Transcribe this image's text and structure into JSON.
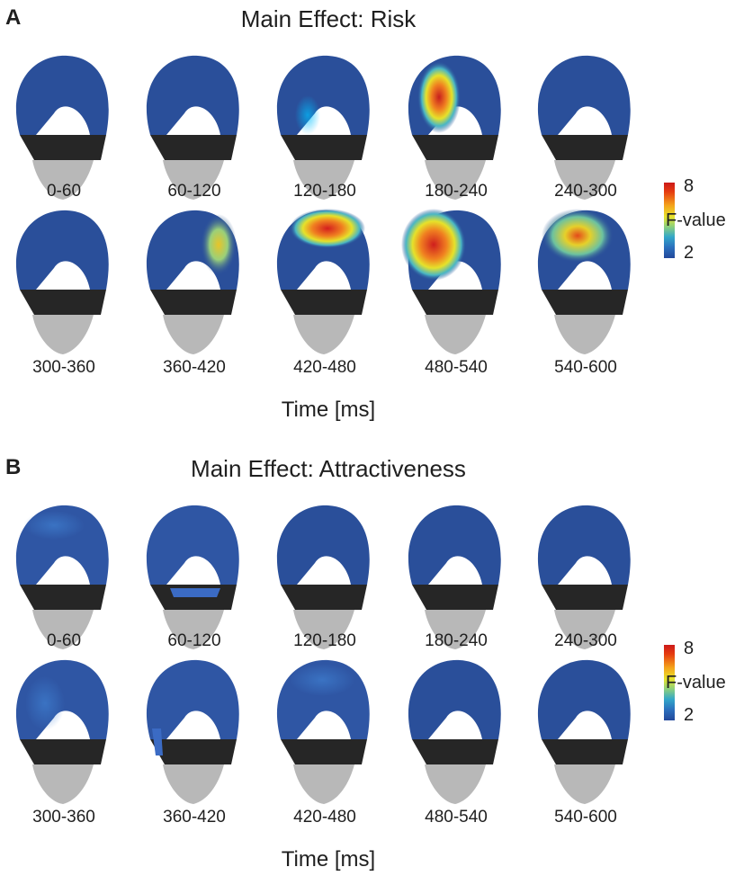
{
  "panels": [
    {
      "letter": "A",
      "title": "Main Effect: Risk",
      "time_windows": [
        "0-60",
        "60-120",
        "120-180",
        "180-240",
        "240-300",
        "300-360",
        "360-420",
        "420-480",
        "480-540",
        "540-600"
      ],
      "xlabel": "Time [ms]",
      "colorbar": {
        "label": "F-value",
        "min": "2",
        "max": "8"
      }
    },
    {
      "letter": "B",
      "title": "Main Effect: Attractiveness",
      "time_windows": [
        "0-60",
        "60-120",
        "120-180",
        "180-240",
        "240-300",
        "300-360",
        "360-420",
        "420-480",
        "480-540",
        "540-600"
      ],
      "xlabel": "Time [ms]",
      "colorbar": {
        "label": "F-value",
        "min": "2",
        "max": "8"
      }
    }
  ],
  "colors": {
    "scalp_low": "#2a4f9a",
    "scalp_high": "#d42020",
    "face_gray": "#b5b5b5",
    "mask_dark": "#2a2a2a"
  }
}
